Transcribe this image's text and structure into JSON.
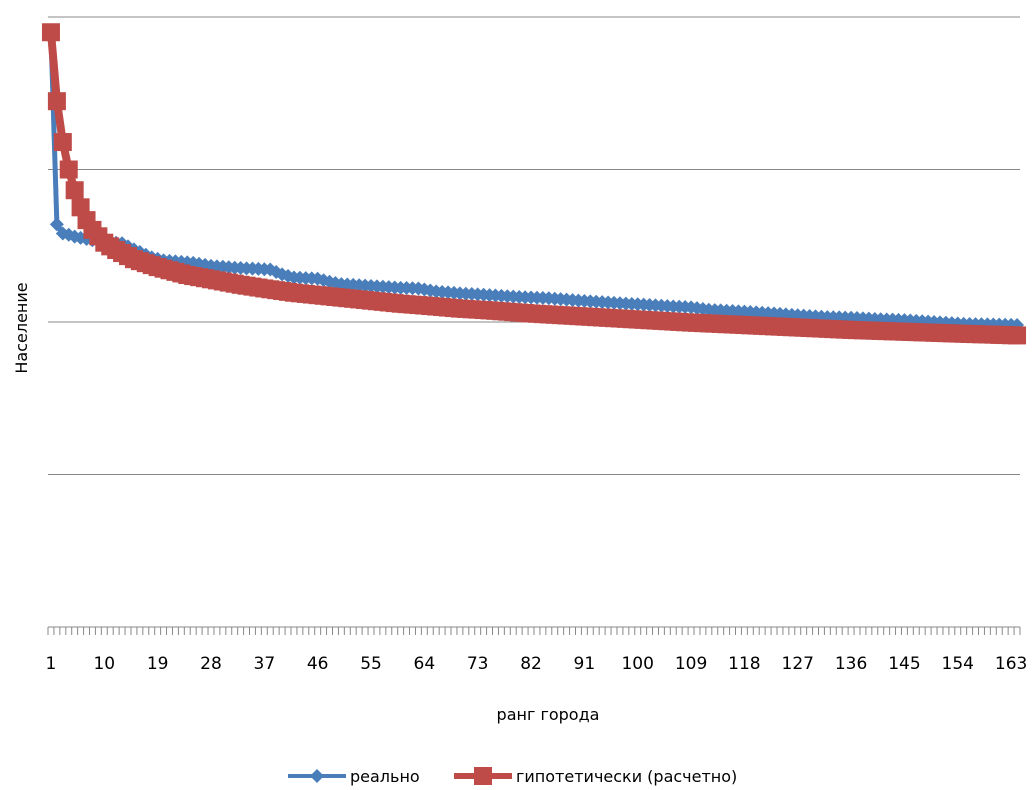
{
  "chart_data": {
    "type": "line",
    "title": "",
    "xlabel": "ранг города",
    "ylabel": "Население",
    "x_tick_labels": [
      "1",
      "10",
      "19",
      "28",
      "37",
      "46",
      "55",
      "64",
      "73",
      "82",
      "91",
      "100",
      "109",
      "118",
      "127",
      "136",
      "145",
      "154",
      "163"
    ],
    "x_range": [
      1,
      164
    ],
    "y_tick_labels_shown": false,
    "gridlines": {
      "horizontal": true,
      "count": 4
    },
    "legend": {
      "position": "bottom"
    },
    "colors": {
      "real": "#4a7ebb",
      "hypothetical": "#be4b48",
      "grid": "#888888",
      "axis": "#888888"
    },
    "series": [
      {
        "name": "реально",
        "marker": "diamond",
        "points": [
          [
            1,
            0.97
          ],
          [
            2,
            0.66
          ],
          [
            3,
            0.645
          ],
          [
            4,
            0.643
          ],
          [
            5,
            0.64
          ],
          [
            6,
            0.638
          ],
          [
            7,
            0.636
          ],
          [
            8,
            0.634
          ],
          [
            10,
            0.632
          ],
          [
            13,
            0.629
          ],
          [
            15,
            0.619
          ],
          [
            18,
            0.606
          ],
          [
            20,
            0.601
          ],
          [
            25,
            0.597
          ],
          [
            28,
            0.592
          ],
          [
            32,
            0.589
          ],
          [
            36,
            0.587
          ],
          [
            38,
            0.586
          ],
          [
            40,
            0.578
          ],
          [
            42,
            0.573
          ],
          [
            46,
            0.571
          ],
          [
            48,
            0.566
          ],
          [
            50,
            0.562
          ],
          [
            55,
            0.559
          ],
          [
            60,
            0.556
          ],
          [
            63,
            0.555
          ],
          [
            66,
            0.55
          ],
          [
            70,
            0.547
          ],
          [
            75,
            0.544
          ],
          [
            80,
            0.541
          ],
          [
            85,
            0.539
          ],
          [
            90,
            0.535
          ],
          [
            95,
            0.532
          ],
          [
            100,
            0.529
          ],
          [
            105,
            0.526
          ],
          [
            109,
            0.524
          ],
          [
            112,
            0.52
          ],
          [
            118,
            0.517
          ],
          [
            123,
            0.514
          ],
          [
            127,
            0.511
          ],
          [
            132,
            0.508
          ],
          [
            136,
            0.507
          ],
          [
            140,
            0.505
          ],
          [
            145,
            0.503
          ],
          [
            150,
            0.5
          ],
          [
            155,
            0.497
          ],
          [
            160,
            0.496
          ],
          [
            164,
            0.495
          ]
        ]
      },
      {
        "name": "гипотетически (расчетно)",
        "marker": "square",
        "formula_shape": "power",
        "points": [
          [
            1,
            0.975
          ],
          [
            2,
            0.862
          ],
          [
            3,
            0.795
          ],
          [
            4,
            0.75
          ],
          [
            5,
            0.716
          ],
          [
            6,
            0.688
          ],
          [
            7,
            0.667
          ],
          [
            8,
            0.651
          ],
          [
            10,
            0.63
          ],
          [
            12,
            0.618
          ],
          [
            15,
            0.603
          ],
          [
            19,
            0.59
          ],
          [
            24,
            0.577
          ],
          [
            28,
            0.57
          ],
          [
            33,
            0.561
          ],
          [
            37,
            0.555
          ],
          [
            42,
            0.548
          ],
          [
            46,
            0.544
          ],
          [
            50,
            0.54
          ],
          [
            55,
            0.535
          ],
          [
            60,
            0.53
          ],
          [
            64,
            0.527
          ],
          [
            70,
            0.522
          ],
          [
            75,
            0.519
          ],
          [
            82,
            0.514
          ],
          [
            91,
            0.509
          ],
          [
            100,
            0.504
          ],
          [
            109,
            0.499
          ],
          [
            118,
            0.495
          ],
          [
            127,
            0.491
          ],
          [
            136,
            0.487
          ],
          [
            145,
            0.484
          ],
          [
            154,
            0.481
          ],
          [
            164,
            0.478
          ]
        ]
      }
    ]
  }
}
